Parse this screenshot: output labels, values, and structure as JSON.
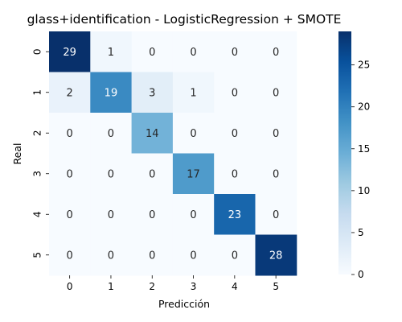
{
  "chart_data": {
    "type": "heatmap",
    "title": "glass+identification - LogisticRegression + SMOTE",
    "xlabel": "Predicción",
    "ylabel": "Real",
    "x_categories": [
      "0",
      "1",
      "2",
      "3",
      "4",
      "5"
    ],
    "y_categories": [
      "0",
      "1",
      "2",
      "3",
      "4",
      "5"
    ],
    "values": [
      [
        29,
        1,
        0,
        0,
        0,
        0
      ],
      [
        2,
        19,
        3,
        1,
        0,
        0
      ],
      [
        0,
        0,
        14,
        0,
        0,
        0
      ],
      [
        0,
        0,
        0,
        17,
        0,
        0
      ],
      [
        0,
        0,
        0,
        0,
        23,
        0
      ],
      [
        0,
        0,
        0,
        0,
        0,
        28
      ]
    ],
    "vmin": 0,
    "vmax": 29,
    "colormap": "Blues",
    "colorbar_ticks": [
      "0",
      "5",
      "10",
      "15",
      "20",
      "25"
    ],
    "colorbar_tick_values": [
      0,
      5,
      10,
      15,
      20,
      25
    ],
    "grid": false,
    "legend": "colorbar-right"
  }
}
